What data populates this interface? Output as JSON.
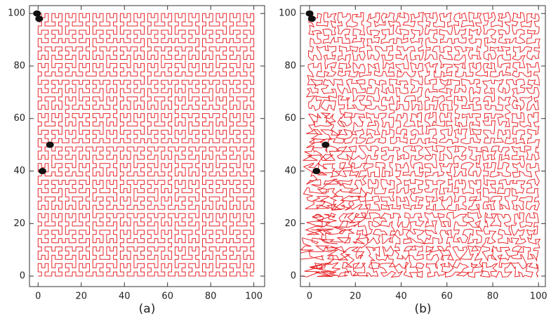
{
  "chart_data": [
    {
      "type": "scatter",
      "caption": "(a)",
      "color": "#111111",
      "line_color": "#e8262a",
      "x": [
        -0.5,
        0.5,
        5.5,
        2
      ],
      "values": [
        100,
        98,
        50,
        40
      ],
      "xlim": [
        -4,
        105
      ],
      "ylim": [
        -4,
        103
      ],
      "xticks": [
        0,
        20,
        40,
        60,
        80,
        100
      ],
      "yticks": [
        0,
        20,
        40,
        60,
        80,
        100
      ]
    },
    {
      "type": "scatter",
      "caption": "(b)",
      "color": "#111111",
      "line_color": "#e8262a",
      "x": [
        0,
        1,
        7,
        3
      ],
      "values": [
        100,
        98,
        50,
        40
      ],
      "xlim": [
        -4,
        103
      ],
      "ylim": [
        -4,
        103
      ],
      "xticks": [
        0,
        20,
        40,
        60,
        80,
        100
      ],
      "yticks": [
        0,
        20,
        40,
        60,
        80,
        100
      ]
    }
  ]
}
